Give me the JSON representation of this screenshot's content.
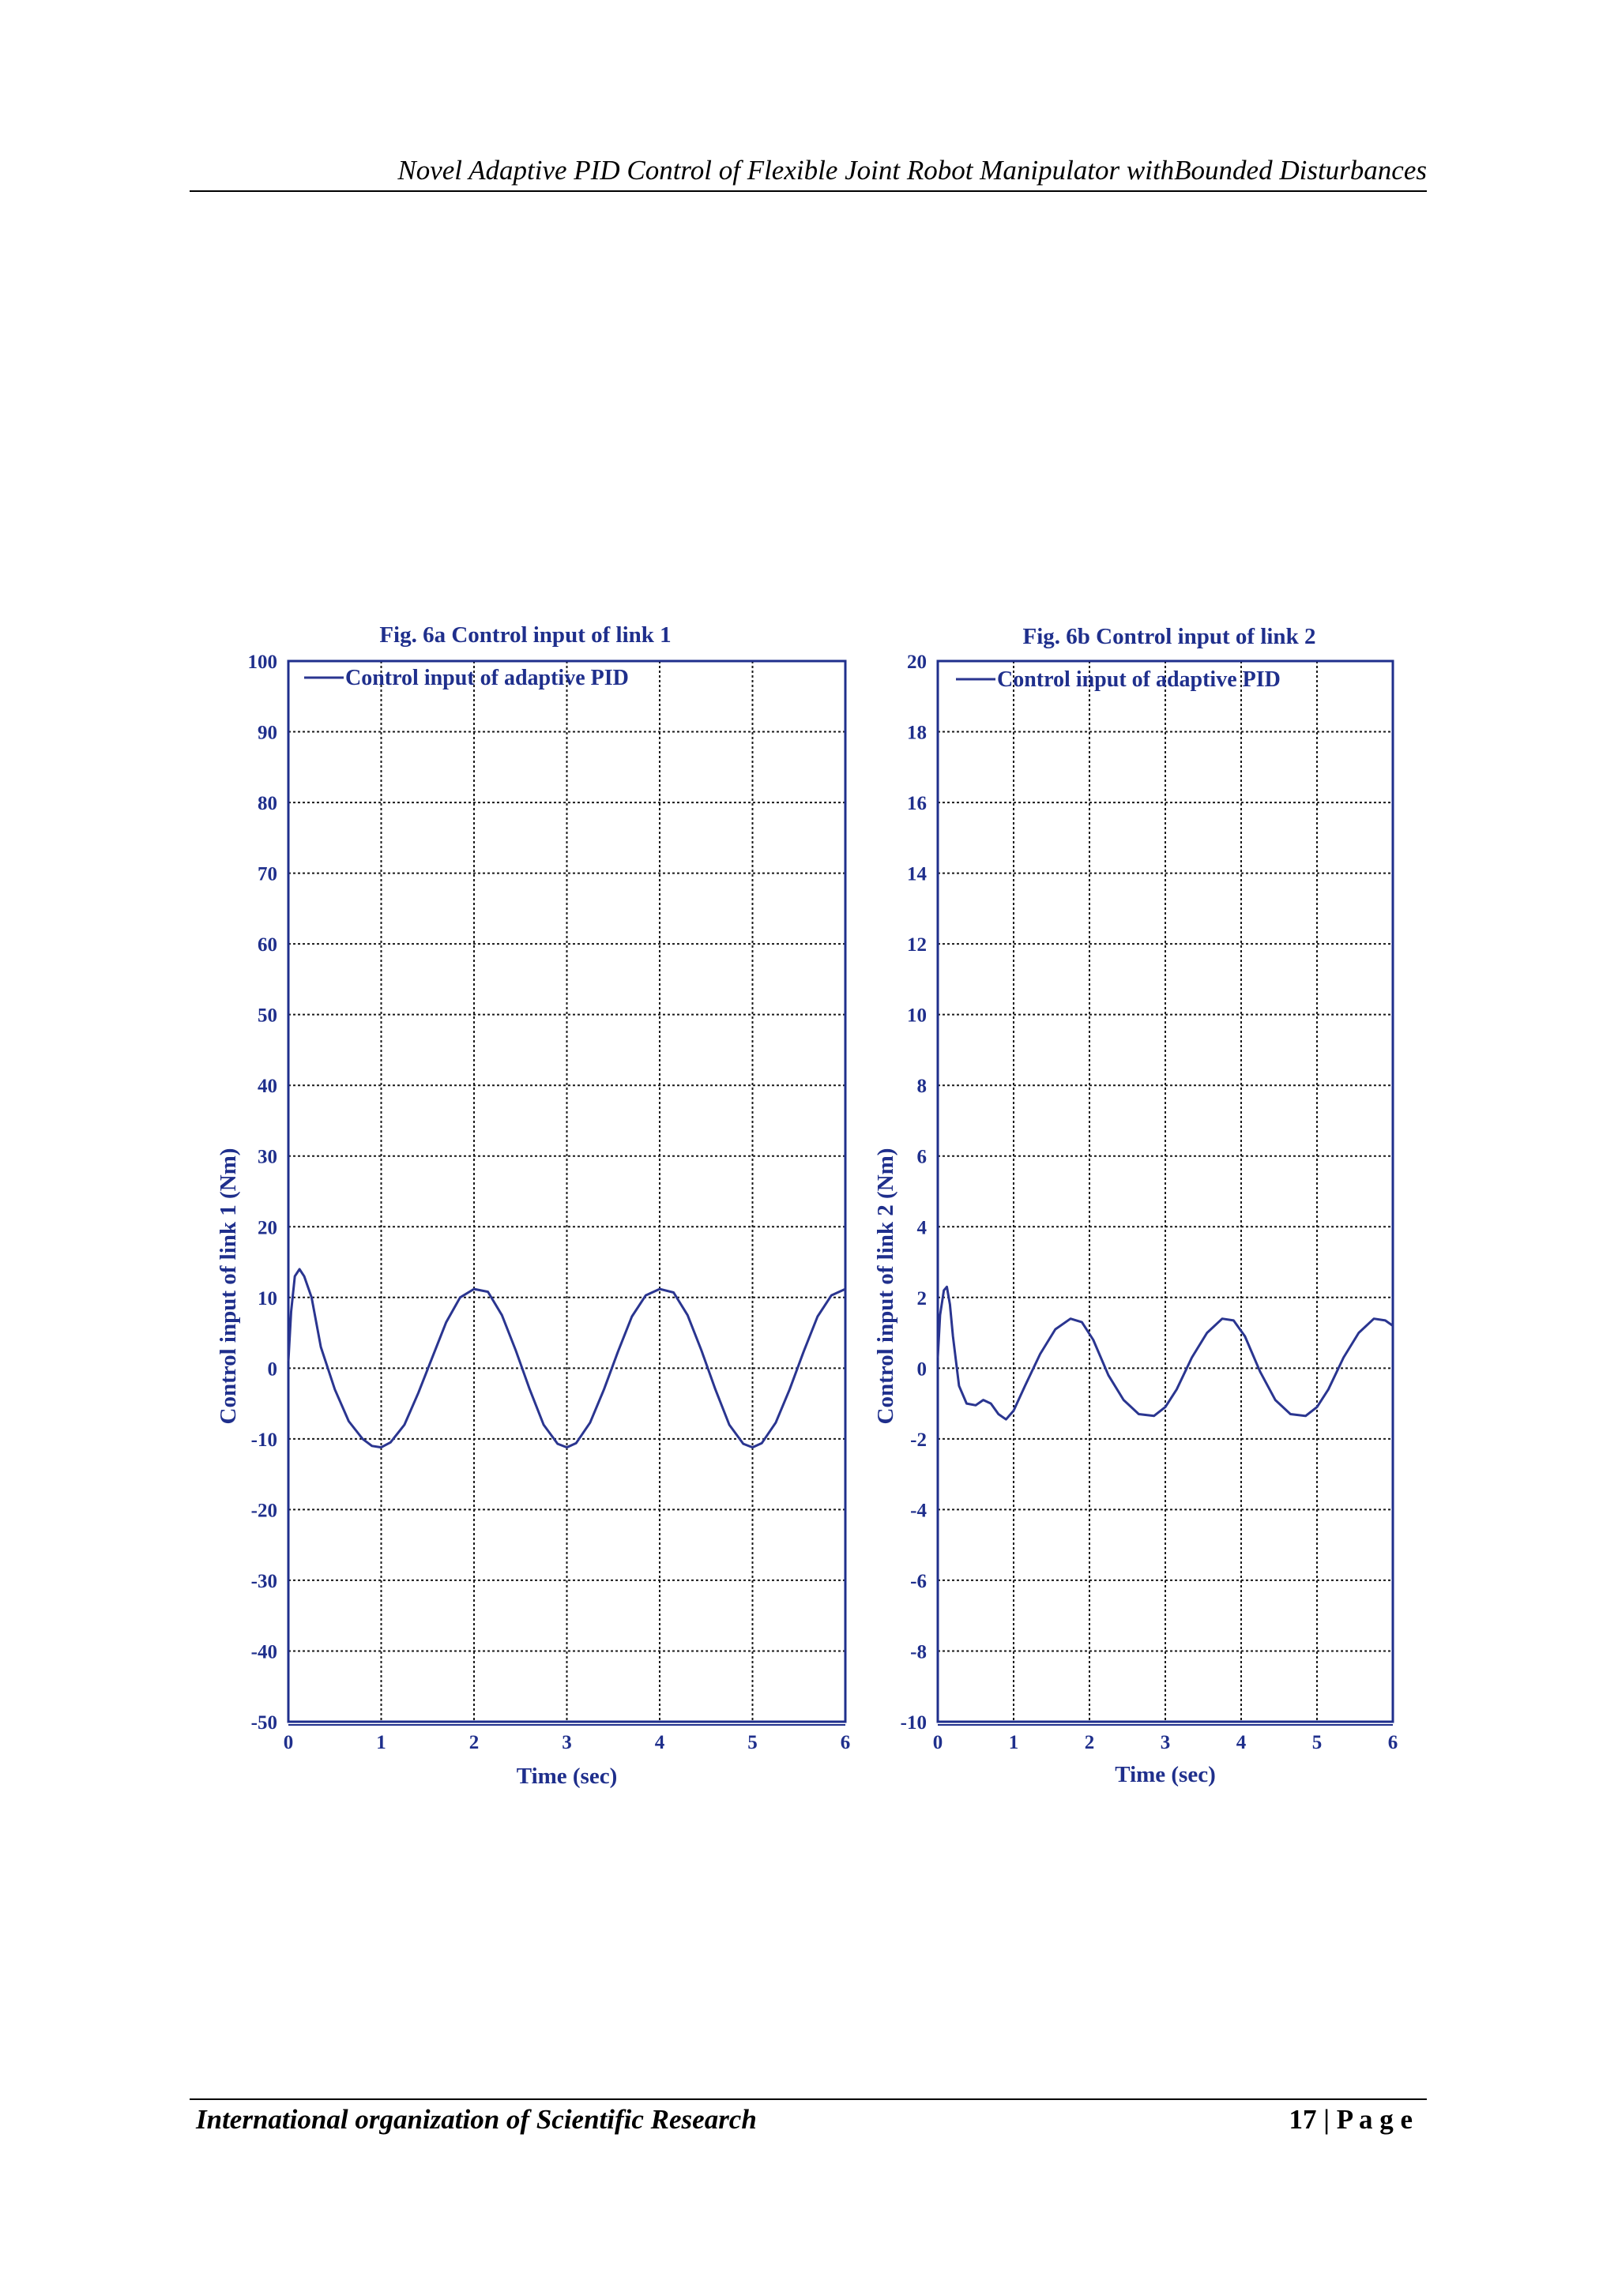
{
  "header": {
    "title": "Novel Adaptive PID Control of Flexible Joint Robot Manipulator withBounded Disturbances"
  },
  "footer": {
    "journal": "International organization of Scientific Research",
    "page": "17 | P a g e"
  },
  "colors": {
    "axis": "#1f2f8c",
    "line": "#2a3590",
    "grid": "#1a1a1a"
  },
  "chart_data": [
    {
      "type": "line",
      "title": "Fig. 6a Control input of link 1",
      "xlabel": "Time (sec)",
      "ylabel": "Control input of link 1 (Nm)",
      "xlim": [
        0,
        6
      ],
      "ylim": [
        -50,
        100
      ],
      "xticks": [
        0,
        1,
        2,
        3,
        4,
        5,
        6
      ],
      "yticks": [
        -50,
        -40,
        -30,
        -20,
        -10,
        0,
        10,
        20,
        30,
        40,
        50,
        60,
        70,
        80,
        90,
        100
      ],
      "grid": true,
      "legend": "top-left",
      "series": [
        {
          "name": "Control input of adaptive PID",
          "x": [
            0,
            0.03,
            0.07,
            0.12,
            0.17,
            0.25,
            0.35,
            0.5,
            0.65,
            0.8,
            0.9,
            1.0,
            1.1,
            1.25,
            1.4,
            1.55,
            1.7,
            1.85,
            2.0,
            2.15,
            2.3,
            2.45,
            2.6,
            2.75,
            2.9,
            3.0,
            3.1,
            3.25,
            3.4,
            3.55,
            3.7,
            3.85,
            4.0,
            4.15,
            4.3,
            4.45,
            4.6,
            4.75,
            4.9,
            5.0,
            5.1,
            5.25,
            5.4,
            5.55,
            5.7,
            5.85,
            6.0
          ],
          "y": [
            1,
            8,
            13,
            14,
            13,
            10,
            3,
            -3,
            -7.5,
            -10,
            -11,
            -11.2,
            -10.5,
            -8,
            -3.5,
            1.5,
            6.5,
            10,
            11.2,
            10.8,
            7.5,
            2.5,
            -3,
            -8,
            -10.7,
            -11.2,
            -10.6,
            -7.7,
            -3,
            2.3,
            7.3,
            10.3,
            11.2,
            10.7,
            7.5,
            2.5,
            -3,
            -8,
            -10.7,
            -11.2,
            -10.6,
            -7.7,
            -3,
            2.3,
            7.3,
            10.3,
            11.2
          ]
        }
      ]
    },
    {
      "type": "line",
      "title": "Fig. 6b Control input of link 2",
      "xlabel": "Time (sec)",
      "ylabel": "Control input of link 2 (Nm)",
      "xlim": [
        0,
        6
      ],
      "ylim": [
        -10,
        20
      ],
      "xticks": [
        0,
        1,
        2,
        3,
        4,
        5,
        6
      ],
      "yticks": [
        -10,
        -8,
        -6,
        -4,
        -2,
        0,
        2,
        4,
        6,
        8,
        10,
        12,
        14,
        16,
        18,
        20
      ],
      "grid": true,
      "legend": "top-left",
      "series": [
        {
          "name": "Control input of adaptive PID",
          "x": [
            0,
            0.03,
            0.08,
            0.12,
            0.16,
            0.2,
            0.28,
            0.38,
            0.5,
            0.6,
            0.7,
            0.8,
            0.9,
            1.0,
            1.15,
            1.35,
            1.55,
            1.75,
            1.9,
            2.05,
            2.25,
            2.45,
            2.65,
            2.85,
            3.0,
            3.15,
            3.35,
            3.55,
            3.75,
            3.9,
            4.05,
            4.25,
            4.45,
            4.65,
            4.85,
            5.0,
            5.15,
            5.35,
            5.55,
            5.75,
            5.9,
            6.0
          ],
          "y": [
            0.3,
            1.5,
            2.2,
            2.3,
            1.8,
            0.9,
            -0.5,
            -1.0,
            -1.05,
            -0.9,
            -1.0,
            -1.3,
            -1.45,
            -1.2,
            -0.5,
            0.4,
            1.1,
            1.4,
            1.3,
            0.8,
            -0.2,
            -0.9,
            -1.3,
            -1.35,
            -1.1,
            -0.6,
            0.3,
            1.0,
            1.4,
            1.35,
            0.9,
            -0.1,
            -0.9,
            -1.3,
            -1.35,
            -1.1,
            -0.6,
            0.3,
            1.0,
            1.4,
            1.35,
            1.2
          ]
        }
      ]
    }
  ]
}
